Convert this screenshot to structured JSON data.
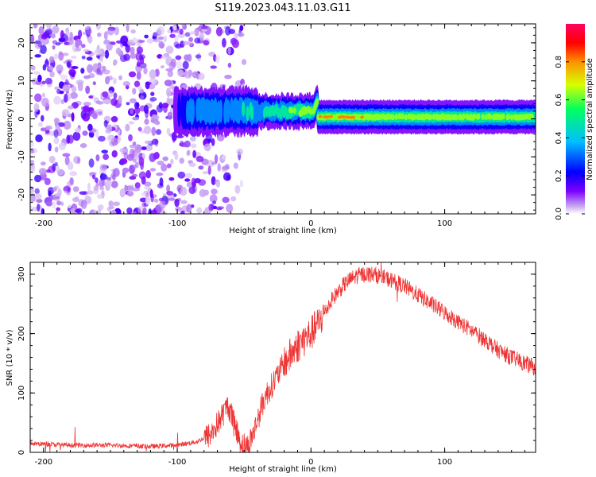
{
  "figure": {
    "title": "S119.2023.043.11.03.G11"
  },
  "chart_data": [
    {
      "type": "heatmap",
      "title": "S119.2023.043.11.03.G11",
      "xlabel": "Height of straight line (km)",
      "ylabel": "Frequency (Hz)",
      "xlim": [
        -210,
        168
      ],
      "ylim": [
        -25,
        25
      ],
      "x_ticks": [
        -200,
        -100,
        0,
        100
      ],
      "y_ticks": [
        -20,
        -10,
        0,
        10,
        20
      ],
      "colorbar": {
        "label": "Normalized spectral amplitude",
        "range": [
          0,
          1
        ],
        "ticks": [
          "0.0",
          "0.2",
          "0.4",
          "0.6",
          "0.8"
        ],
        "tick_values": [
          0.0,
          0.2,
          0.4,
          0.6,
          0.8
        ],
        "colors": [
          "#ffffff",
          "#c9a8f0",
          "#7a00ff",
          "#0000ff",
          "#00c0ff",
          "#00ff60",
          "#d8ff00",
          "#ff9000",
          "#ff0000",
          "#ff0060"
        ]
      },
      "ridge": {
        "x": [
          -105,
          -95,
          -88,
          -80,
          -72,
          -65,
          -58,
          -52,
          -45,
          -38,
          -30,
          -22,
          -15,
          -8,
          0,
          10,
          30,
          60,
          100,
          140,
          168
        ],
        "y": [
          2,
          4,
          5,
          2,
          -3,
          -5,
          -3,
          -4,
          -3,
          -2,
          -1,
          0,
          1,
          -1,
          0,
          0,
          0,
          1,
          1,
          1,
          0.5
        ],
        "amplitude": [
          0.05,
          0.25,
          0.3,
          0.35,
          0.35,
          0.3,
          0.3,
          0.4,
          0.45,
          0.45,
          0.5,
          0.5,
          0.55,
          0.6,
          0.65,
          0.75,
          0.8,
          0.6,
          0.65,
          0.6,
          0.6
        ]
      },
      "noise_region_x": [
        -210,
        -60
      ],
      "grid": false,
      "legend": "colorbar-right"
    },
    {
      "type": "line",
      "xlabel": "Height of straight line (km)",
      "ylabel": "SNR (10 * v/v)",
      "xlim": [
        -210,
        168
      ],
      "ylim": [
        0,
        320
      ],
      "x_ticks": [
        -200,
        -100,
        0,
        100
      ],
      "y_ticks": [
        0,
        100,
        200,
        300
      ],
      "color": "#ee3333",
      "x": [
        -210,
        -180,
        -150,
        -120,
        -100,
        -85,
        -75,
        -68,
        -62,
        -57,
        -52,
        -47,
        -42,
        -38,
        -34,
        -30,
        -25,
        -20,
        -15,
        -10,
        -5,
        0,
        5,
        10,
        15,
        20,
        25,
        30,
        35,
        40,
        45,
        50,
        55,
        60,
        70,
        80,
        90,
        100,
        110,
        120,
        130,
        140,
        150,
        160,
        168
      ],
      "y": [
        15,
        12,
        12,
        10,
        12,
        18,
        30,
        55,
        80,
        45,
        15,
        10,
        40,
        70,
        95,
        110,
        130,
        150,
        165,
        180,
        190,
        200,
        215,
        235,
        255,
        270,
        283,
        292,
        298,
        300,
        300,
        298,
        294,
        290,
        280,
        265,
        250,
        235,
        220,
        205,
        190,
        172,
        160,
        150,
        142
      ],
      "grid": false
    }
  ]
}
